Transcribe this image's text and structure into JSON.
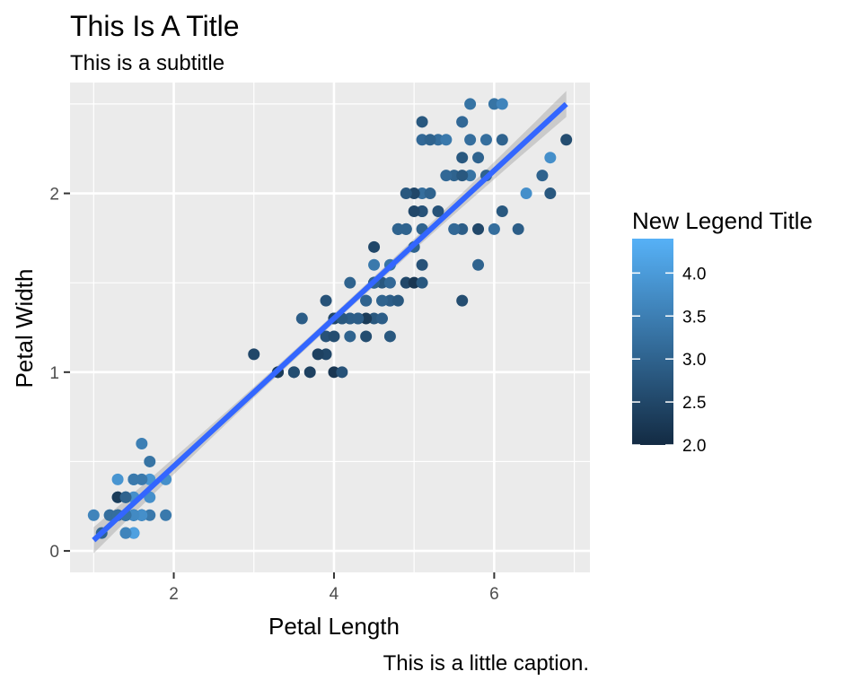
{
  "chart_data": {
    "type": "scatter",
    "title": "This Is A Title",
    "subtitle": "This is a subtitle",
    "caption": "This is a little caption.",
    "xlabel": "Petal Length",
    "ylabel": "Petal Width",
    "xlim": [
      0.705,
      7.195
    ],
    "ylim": [
      -0.12,
      2.62
    ],
    "x_ticks": [
      2,
      4,
      6
    ],
    "y_ticks": [
      0,
      1,
      2
    ],
    "grid": true,
    "legend": {
      "title": "New Legend Title",
      "placement": "right",
      "type": "colorbar",
      "range": [
        2.0,
        4.4
      ],
      "ticks": [
        2.0,
        2.5,
        3.0,
        3.5,
        4.0
      ],
      "tick_labels": [
        "2.0",
        "2.5",
        "3.0",
        "3.5",
        "4.0"
      ],
      "color_low": "#132B43",
      "color_high": "#56B1F7"
    },
    "smooth": {
      "method": "lm",
      "color": "#3366FF",
      "band": true,
      "x": [
        1.0,
        6.9
      ],
      "y": [
        0.06,
        2.5
      ]
    },
    "points": [
      {
        "x": 1.4,
        "y": 0.2,
        "c": 3.5
      },
      {
        "x": 1.4,
        "y": 0.2,
        "c": 3.0
      },
      {
        "x": 1.3,
        "y": 0.2,
        "c": 3.2
      },
      {
        "x": 1.5,
        "y": 0.2,
        "c": 3.1
      },
      {
        "x": 1.4,
        "y": 0.2,
        "c": 3.6
      },
      {
        "x": 1.7,
        "y": 0.4,
        "c": 3.9
      },
      {
        "x": 1.4,
        "y": 0.3,
        "c": 3.4
      },
      {
        "x": 1.5,
        "y": 0.2,
        "c": 3.4
      },
      {
        "x": 1.4,
        "y": 0.2,
        "c": 2.9
      },
      {
        "x": 1.5,
        "y": 0.1,
        "c": 3.1
      },
      {
        "x": 1.5,
        "y": 0.2,
        "c": 3.7
      },
      {
        "x": 1.6,
        "y": 0.2,
        "c": 3.4
      },
      {
        "x": 1.4,
        "y": 0.1,
        "c": 3.0
      },
      {
        "x": 1.1,
        "y": 0.1,
        "c": 3.0
      },
      {
        "x": 1.2,
        "y": 0.2,
        "c": 4.0
      },
      {
        "x": 1.5,
        "y": 0.4,
        "c": 4.4
      },
      {
        "x": 1.3,
        "y": 0.4,
        "c": 3.9
      },
      {
        "x": 1.4,
        "y": 0.3,
        "c": 3.5
      },
      {
        "x": 1.7,
        "y": 0.3,
        "c": 3.8
      },
      {
        "x": 1.5,
        "y": 0.3,
        "c": 3.8
      },
      {
        "x": 1.7,
        "y": 0.2,
        "c": 3.4
      },
      {
        "x": 1.5,
        "y": 0.4,
        "c": 3.7
      },
      {
        "x": 1.0,
        "y": 0.2,
        "c": 3.6
      },
      {
        "x": 1.7,
        "y": 0.5,
        "c": 3.3
      },
      {
        "x": 1.9,
        "y": 0.2,
        "c": 3.4
      },
      {
        "x": 1.6,
        "y": 0.2,
        "c": 3.0
      },
      {
        "x": 1.6,
        "y": 0.4,
        "c": 3.4
      },
      {
        "x": 1.5,
        "y": 0.2,
        "c": 3.5
      },
      {
        "x": 1.4,
        "y": 0.2,
        "c": 3.4
      },
      {
        "x": 1.6,
        "y": 0.2,
        "c": 3.2
      },
      {
        "x": 1.6,
        "y": 0.2,
        "c": 3.1
      },
      {
        "x": 1.5,
        "y": 0.4,
        "c": 3.4
      },
      {
        "x": 1.5,
        "y": 0.1,
        "c": 4.1
      },
      {
        "x": 1.4,
        "y": 0.2,
        "c": 4.2
      },
      {
        "x": 1.5,
        "y": 0.2,
        "c": 3.1
      },
      {
        "x": 1.2,
        "y": 0.2,
        "c": 3.2
      },
      {
        "x": 1.3,
        "y": 0.2,
        "c": 3.5
      },
      {
        "x": 1.4,
        "y": 0.1,
        "c": 3.6
      },
      {
        "x": 1.3,
        "y": 0.2,
        "c": 3.0
      },
      {
        "x": 1.5,
        "y": 0.2,
        "c": 3.4
      },
      {
        "x": 1.3,
        "y": 0.3,
        "c": 3.5
      },
      {
        "x": 1.3,
        "y": 0.3,
        "c": 2.3
      },
      {
        "x": 1.3,
        "y": 0.2,
        "c": 3.2
      },
      {
        "x": 1.6,
        "y": 0.6,
        "c": 3.5
      },
      {
        "x": 1.9,
        "y": 0.4,
        "c": 3.8
      },
      {
        "x": 1.4,
        "y": 0.3,
        "c": 3.0
      },
      {
        "x": 1.6,
        "y": 0.2,
        "c": 3.8
      },
      {
        "x": 1.4,
        "y": 0.2,
        "c": 3.2
      },
      {
        "x": 1.5,
        "y": 0.2,
        "c": 3.7
      },
      {
        "x": 1.4,
        "y": 0.2,
        "c": 3.3
      },
      {
        "x": 4.7,
        "y": 1.4,
        "c": 3.2
      },
      {
        "x": 4.5,
        "y": 1.5,
        "c": 3.2
      },
      {
        "x": 4.9,
        "y": 1.5,
        "c": 3.1
      },
      {
        "x": 4.0,
        "y": 1.3,
        "c": 2.3
      },
      {
        "x": 4.6,
        "y": 1.5,
        "c": 2.8
      },
      {
        "x": 4.5,
        "y": 1.3,
        "c": 2.8
      },
      {
        "x": 4.7,
        "y": 1.6,
        "c": 3.3
      },
      {
        "x": 3.3,
        "y": 1.0,
        "c": 2.4
      },
      {
        "x": 4.6,
        "y": 1.3,
        "c": 2.9
      },
      {
        "x": 3.9,
        "y": 1.4,
        "c": 2.7
      },
      {
        "x": 3.5,
        "y": 1.0,
        "c": 2.0
      },
      {
        "x": 4.2,
        "y": 1.5,
        "c": 3.0
      },
      {
        "x": 4.0,
        "y": 1.0,
        "c": 2.2
      },
      {
        "x": 4.7,
        "y": 1.4,
        "c": 2.9
      },
      {
        "x": 3.6,
        "y": 1.3,
        "c": 2.9
      },
      {
        "x": 4.4,
        "y": 1.4,
        "c": 3.1
      },
      {
        "x": 4.5,
        "y": 1.5,
        "c": 3.0
      },
      {
        "x": 4.1,
        "y": 1.0,
        "c": 2.7
      },
      {
        "x": 4.5,
        "y": 1.5,
        "c": 2.2
      },
      {
        "x": 3.9,
        "y": 1.1,
        "c": 2.5
      },
      {
        "x": 4.8,
        "y": 1.8,
        "c": 3.2
      },
      {
        "x": 4.0,
        "y": 1.3,
        "c": 2.8
      },
      {
        "x": 4.9,
        "y": 1.5,
        "c": 2.5
      },
      {
        "x": 4.7,
        "y": 1.2,
        "c": 2.8
      },
      {
        "x": 4.3,
        "y": 1.3,
        "c": 2.9
      },
      {
        "x": 4.4,
        "y": 1.4,
        "c": 3.0
      },
      {
        "x": 4.8,
        "y": 1.4,
        "c": 2.8
      },
      {
        "x": 5.0,
        "y": 1.7,
        "c": 3.0
      },
      {
        "x": 4.5,
        "y": 1.5,
        "c": 2.9
      },
      {
        "x": 3.5,
        "y": 1.0,
        "c": 2.6
      },
      {
        "x": 3.8,
        "y": 1.1,
        "c": 2.4
      },
      {
        "x": 3.7,
        "y": 1.0,
        "c": 2.4
      },
      {
        "x": 3.9,
        "y": 1.2,
        "c": 2.7
      },
      {
        "x": 5.1,
        "y": 1.6,
        "c": 2.7
      },
      {
        "x": 4.5,
        "y": 1.5,
        "c": 3.0
      },
      {
        "x": 4.5,
        "y": 1.6,
        "c": 3.4
      },
      {
        "x": 4.7,
        "y": 1.5,
        "c": 3.1
      },
      {
        "x": 4.4,
        "y": 1.3,
        "c": 2.3
      },
      {
        "x": 4.1,
        "y": 1.3,
        "c": 3.0
      },
      {
        "x": 4.0,
        "y": 1.3,
        "c": 2.5
      },
      {
        "x": 4.4,
        "y": 1.2,
        "c": 2.6
      },
      {
        "x": 4.6,
        "y": 1.4,
        "c": 3.0
      },
      {
        "x": 4.0,
        "y": 1.2,
        "c": 2.6
      },
      {
        "x": 3.3,
        "y": 1.0,
        "c": 2.3
      },
      {
        "x": 4.2,
        "y": 1.3,
        "c": 2.7
      },
      {
        "x": 4.2,
        "y": 1.2,
        "c": 3.0
      },
      {
        "x": 4.2,
        "y": 1.3,
        "c": 2.9
      },
      {
        "x": 4.3,
        "y": 1.3,
        "c": 2.9
      },
      {
        "x": 3.0,
        "y": 1.1,
        "c": 2.5
      },
      {
        "x": 4.1,
        "y": 1.3,
        "c": 2.8
      },
      {
        "x": 6.0,
        "y": 2.5,
        "c": 3.3
      },
      {
        "x": 5.1,
        "y": 1.9,
        "c": 2.7
      },
      {
        "x": 5.9,
        "y": 2.1,
        "c": 3.0
      },
      {
        "x": 5.6,
        "y": 1.8,
        "c": 2.9
      },
      {
        "x": 5.8,
        "y": 2.2,
        "c": 3.0
      },
      {
        "x": 6.6,
        "y": 2.1,
        "c": 3.0
      },
      {
        "x": 4.5,
        "y": 1.7,
        "c": 2.5
      },
      {
        "x": 6.3,
        "y": 1.8,
        "c": 2.9
      },
      {
        "x": 5.8,
        "y": 1.8,
        "c": 2.5
      },
      {
        "x": 6.1,
        "y": 2.5,
        "c": 3.6
      },
      {
        "x": 5.1,
        "y": 2.0,
        "c": 3.2
      },
      {
        "x": 5.3,
        "y": 1.9,
        "c": 2.7
      },
      {
        "x": 5.5,
        "y": 2.1,
        "c": 3.0
      },
      {
        "x": 5.0,
        "y": 2.0,
        "c": 2.5
      },
      {
        "x": 5.1,
        "y": 2.4,
        "c": 2.8
      },
      {
        "x": 5.3,
        "y": 2.3,
        "c": 3.2
      },
      {
        "x": 5.5,
        "y": 1.8,
        "c": 3.0
      },
      {
        "x": 6.7,
        "y": 2.2,
        "c": 3.8
      },
      {
        "x": 6.9,
        "y": 2.3,
        "c": 2.6
      },
      {
        "x": 5.0,
        "y": 1.5,
        "c": 2.2
      },
      {
        "x": 5.7,
        "y": 2.3,
        "c": 3.2
      },
      {
        "x": 4.9,
        "y": 2.0,
        "c": 2.8
      },
      {
        "x": 6.7,
        "y": 2.0,
        "c": 2.8
      },
      {
        "x": 4.9,
        "y": 1.8,
        "c": 2.7
      },
      {
        "x": 5.7,
        "y": 2.1,
        "c": 3.3
      },
      {
        "x": 6.0,
        "y": 1.8,
        "c": 3.2
      },
      {
        "x": 4.8,
        "y": 1.8,
        "c": 2.8
      },
      {
        "x": 4.9,
        "y": 1.8,
        "c": 3.0
      },
      {
        "x": 5.6,
        "y": 2.1,
        "c": 2.8
      },
      {
        "x": 5.8,
        "y": 1.6,
        "c": 3.0
      },
      {
        "x": 6.1,
        "y": 1.9,
        "c": 2.8
      },
      {
        "x": 6.4,
        "y": 2.0,
        "c": 3.8
      },
      {
        "x": 5.6,
        "y": 2.2,
        "c": 2.8
      },
      {
        "x": 5.1,
        "y": 1.5,
        "c": 2.8
      },
      {
        "x": 5.6,
        "y": 1.4,
        "c": 2.6
      },
      {
        "x": 6.1,
        "y": 2.3,
        "c": 3.0
      },
      {
        "x": 5.6,
        "y": 2.4,
        "c": 3.4
      },
      {
        "x": 5.5,
        "y": 1.8,
        "c": 3.1
      },
      {
        "x": 4.8,
        "y": 1.8,
        "c": 3.0
      },
      {
        "x": 5.4,
        "y": 2.1,
        "c": 3.1
      },
      {
        "x": 5.6,
        "y": 2.4,
        "c": 3.1
      },
      {
        "x": 5.1,
        "y": 2.3,
        "c": 3.1
      },
      {
        "x": 5.1,
        "y": 1.9,
        "c": 2.7
      },
      {
        "x": 5.9,
        "y": 2.3,
        "c": 3.2
      },
      {
        "x": 5.7,
        "y": 2.5,
        "c": 3.3
      },
      {
        "x": 5.2,
        "y": 2.3,
        "c": 3.0
      },
      {
        "x": 5.0,
        "y": 1.9,
        "c": 2.5
      },
      {
        "x": 5.2,
        "y": 2.0,
        "c": 3.0
      },
      {
        "x": 5.4,
        "y": 2.3,
        "c": 3.4
      },
      {
        "x": 5.1,
        "y": 1.8,
        "c": 3.0
      }
    ]
  },
  "colors": {
    "panel_bg": "#EBEBEB",
    "grid": "#FFFFFF",
    "line": "#3366FF",
    "band": "#999999"
  }
}
